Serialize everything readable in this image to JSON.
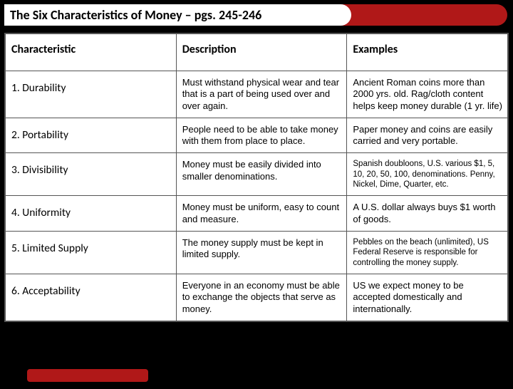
{
  "title": "The Six Characteristics of Money – pgs. 245-246",
  "colors": {
    "accent": "#b01818",
    "background": "#000000",
    "table_bg": "#ffffff",
    "border": "#555555",
    "text": "#000000"
  },
  "table": {
    "headers": {
      "col1": "Characteristic",
      "col2": "Description",
      "col3": "Examples"
    },
    "rows": [
      {
        "char": "1. Durability",
        "desc": "Must withstand physical wear and tear that is a part of being used over and over again.",
        "ex": "Ancient Roman coins more than 2000 yrs. old. Rag/cloth content helps keep money durable (1 yr. life)",
        "ex_small": false
      },
      {
        "char": "2. Portability",
        "desc": "People need to be able to take money with them from place to place.",
        "ex": "Paper money and coins are easily carried and very portable.",
        "ex_small": false
      },
      {
        "char": "3. Divisibility",
        "desc": "Money must be easily divided into smaller denominations.",
        "ex": "Spanish doubloons, U.S. various $1, 5, 10, 20, 50, 100, denominations. Penny, Nickel, Dime, Quarter, etc.",
        "ex_small": true
      },
      {
        "char": "4. Uniformity",
        "desc": "Money must be uniform, easy to count and measure.",
        "ex": "A U.S. dollar always buys $1 worth of goods.",
        "ex_small": false
      },
      {
        "char": "5. Limited Supply",
        "desc": "The money supply must be kept in limited supply.",
        "ex": "Pebbles on the beach (unlimited), US Federal Reserve is responsible for controlling the money supply.",
        "ex_small": true
      },
      {
        "char": "6. Acceptability",
        "desc": "Everyone in an economy must be able to exchange the objects that serve as money.",
        "ex": "US we expect money to be accepted domestically and internationally.",
        "ex_small": false
      }
    ]
  }
}
